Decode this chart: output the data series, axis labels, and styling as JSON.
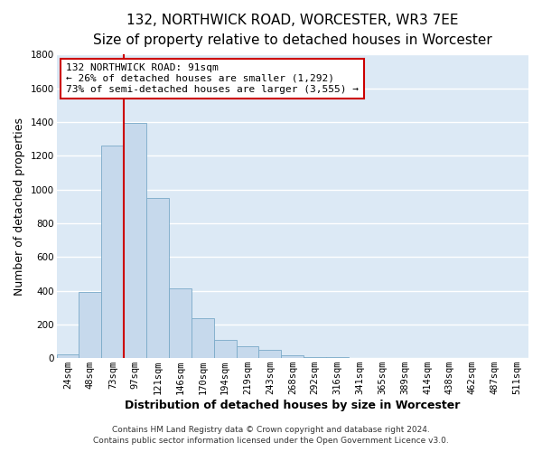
{
  "title": "132, NORTHWICK ROAD, WORCESTER, WR3 7EE",
  "subtitle": "Size of property relative to detached houses in Worcester",
  "xlabel": "Distribution of detached houses by size in Worcester",
  "ylabel": "Number of detached properties",
  "bar_labels": [
    "24sqm",
    "48sqm",
    "73sqm",
    "97sqm",
    "121sqm",
    "146sqm",
    "170sqm",
    "194sqm",
    "219sqm",
    "243sqm",
    "268sqm",
    "292sqm",
    "316sqm",
    "341sqm",
    "365sqm",
    "389sqm",
    "414sqm",
    "438sqm",
    "462sqm",
    "487sqm",
    "511sqm"
  ],
  "bar_values": [
    25,
    390,
    1260,
    1395,
    950,
    415,
    235,
    110,
    68,
    50,
    15,
    5,
    5,
    0,
    0,
    0,
    0,
    0,
    0,
    0,
    0
  ],
  "bar_color": "#c6d9ec",
  "bar_edge_color": "#7aaac8",
  "vline_color": "#cc0000",
  "vline_index": 3,
  "ylim": [
    0,
    1800
  ],
  "yticks": [
    0,
    200,
    400,
    600,
    800,
    1000,
    1200,
    1400,
    1600,
    1800
  ],
  "annotation_title": "132 NORTHWICK ROAD: 91sqm",
  "annotation_line1": "← 26% of detached houses are smaller (1,292)",
  "annotation_line2": "73% of semi-detached houses are larger (3,555) →",
  "annotation_box_color": "#ffffff",
  "annotation_box_edge": "#cc0000",
  "footer_line1": "Contains HM Land Registry data © Crown copyright and database right 2024.",
  "footer_line2": "Contains public sector information licensed under the Open Government Licence v3.0.",
  "bg_color": "#ffffff",
  "plot_bg_color": "#dce9f5",
  "grid_color": "#ffffff",
  "title_fontsize": 11,
  "subtitle_fontsize": 9.5,
  "axis_label_fontsize": 9,
  "tick_fontsize": 7.5,
  "footer_fontsize": 6.5
}
